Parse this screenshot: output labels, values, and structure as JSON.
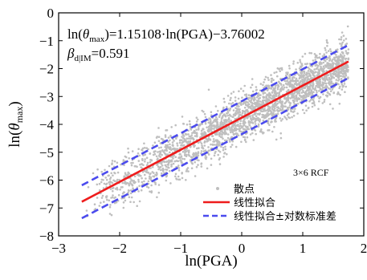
{
  "chart_data": {
    "type": "scatter",
    "xlabel": "ln(PGA)",
    "ylabel_prefix": "ln(",
    "ylabel_theta": "θ",
    "ylabel_sub": "max",
    "ylabel_suffix": ")",
    "xlim": [
      -3,
      2
    ],
    "ylim": [
      -8,
      0
    ],
    "xticks": [
      "−3",
      "−2",
      "−1",
      "0",
      "1",
      "2"
    ],
    "yticks": [
      "0",
      "−1",
      "−2",
      "−3",
      "−4",
      "−5",
      "−6",
      "−7",
      "−8"
    ],
    "grid": false,
    "equation": {
      "prefix": "ln(",
      "theta": "θ",
      "sub": "max",
      "rest": ")=1.15108·ln(PGA)−3.76002"
    },
    "beta": {
      "symbol": "β",
      "sub": "d|IM",
      "rest": "=0.591"
    },
    "fit": {
      "slope": 1.15108,
      "intercept": -3.76002,
      "x_range": [
        -2.62,
        1.75
      ]
    },
    "std": 0.591,
    "scatter_x_range": [
      -2.6,
      1.75
    ],
    "scatter_color": "#bfbfbf",
    "fit_color": "#ee1c1c",
    "band_color": "#4b4bee",
    "annotation": "3×6 RCF",
    "legend": {
      "position": "bottom-right",
      "entries": [
        {
          "label": "散点",
          "kind": "marker"
        },
        {
          "label": "线性拟合",
          "kind": "solid"
        },
        {
          "label": "线性拟合±对数标准差",
          "kind": "dashed"
        }
      ]
    }
  }
}
